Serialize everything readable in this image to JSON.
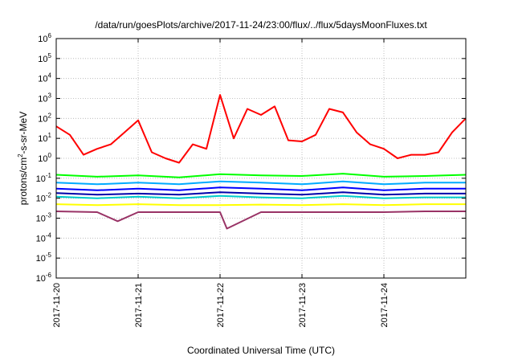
{
  "chart_data": {
    "type": "line",
    "title": "/data/run/goesPlots/archive/2017-11-24/23:00/flux/../flux/5daysMoonFluxes.txt",
    "xlabel": "Coordinated Universal Time (UTC)",
    "ylabel": "protons/cm²-s-sr-MeV",
    "ylabel_parts": {
      "pre": "protons/cm",
      "sup": "2",
      "post": "-s-sr-MeV"
    },
    "y_scale": "log",
    "ylim": [
      1e-06,
      1000000.0
    ],
    "y_ticks": [
      {
        "exp": -6,
        "base": "10",
        "power": "-6"
      },
      {
        "exp": -5,
        "base": "10",
        "power": "-5"
      },
      {
        "exp": -4,
        "base": "10",
        "power": "-4"
      },
      {
        "exp": -3,
        "base": "10",
        "power": "-3"
      },
      {
        "exp": -2,
        "base": "10",
        "power": "-2"
      },
      {
        "exp": -1,
        "base": "10",
        "power": "-1"
      },
      {
        "exp": 0,
        "base": "10",
        "power": "0"
      },
      {
        "exp": 1,
        "base": "10",
        "power": "1"
      },
      {
        "exp": 2,
        "base": "10",
        "power": "2"
      },
      {
        "exp": 3,
        "base": "10",
        "power": "3"
      },
      {
        "exp": 4,
        "base": "10",
        "power": "4"
      },
      {
        "exp": 5,
        "base": "10",
        "power": "5"
      },
      {
        "exp": 6,
        "base": "10",
        "power": "6"
      }
    ],
    "xlim": [
      "2017-11-20T00:00",
      "2017-11-25T00:00"
    ],
    "x_ticks": [
      "2017-11-20",
      "2017-11-21",
      "2017-11-22",
      "2017-11-23",
      "2017-11-24"
    ],
    "grid": true,
    "legend": "none",
    "series": [
      {
        "color": "#ff0000",
        "x": [
          "2017-11-20T00:00",
          "2017-11-20T04:00",
          "2017-11-20T08:00",
          "2017-11-20T12:00",
          "2017-11-20T16:00",
          "2017-11-20T20:00",
          "2017-11-21T00:00",
          "2017-11-21T04:00",
          "2017-11-21T08:00",
          "2017-11-21T12:00",
          "2017-11-21T16:00",
          "2017-11-21T20:00",
          "2017-11-22T00:00",
          "2017-11-22T04:00",
          "2017-11-22T08:00",
          "2017-11-22T12:00",
          "2017-11-22T16:00",
          "2017-11-22T20:00",
          "2017-11-23T00:00",
          "2017-11-23T04:00",
          "2017-11-23T08:00",
          "2017-11-23T12:00",
          "2017-11-23T16:00",
          "2017-11-23T20:00",
          "2017-11-24T00:00",
          "2017-11-24T04:00",
          "2017-11-24T08:00",
          "2017-11-24T12:00",
          "2017-11-24T16:00",
          "2017-11-24T20:00",
          "2017-11-25T00:00"
        ],
        "values": [
          40,
          15,
          1.5,
          3,
          5,
          20,
          80,
          2,
          1,
          0.6,
          5,
          3,
          1500,
          10,
          300,
          150,
          400,
          8,
          7,
          15,
          300,
          200,
          20,
          5,
          3,
          1,
          1.5,
          1.5,
          2,
          20,
          100
        ]
      },
      {
        "color": "#00ff00",
        "x": [
          "2017-11-20T00:00",
          "2017-11-20T12:00",
          "2017-11-21T00:00",
          "2017-11-21T12:00",
          "2017-11-22T00:00",
          "2017-11-22T12:00",
          "2017-11-23T00:00",
          "2017-11-23T12:00",
          "2017-11-24T00:00",
          "2017-11-24T12:00",
          "2017-11-25T00:00"
        ],
        "values": [
          0.15,
          0.12,
          0.14,
          0.11,
          0.16,
          0.14,
          0.13,
          0.17,
          0.12,
          0.13,
          0.15
        ]
      },
      {
        "color": "#00aaff",
        "x": [
          "2017-11-20T00:00",
          "2017-11-20T12:00",
          "2017-11-21T00:00",
          "2017-11-21T12:00",
          "2017-11-22T00:00",
          "2017-11-22T12:00",
          "2017-11-23T00:00",
          "2017-11-23T12:00",
          "2017-11-24T00:00",
          "2017-11-24T12:00",
          "2017-11-25T00:00"
        ],
        "values": [
          0.06,
          0.05,
          0.06,
          0.05,
          0.07,
          0.06,
          0.05,
          0.07,
          0.05,
          0.06,
          0.06
        ]
      },
      {
        "color": "#0000ff",
        "x": [
          "2017-11-20T00:00",
          "2017-11-20T12:00",
          "2017-11-21T00:00",
          "2017-11-21T12:00",
          "2017-11-22T00:00",
          "2017-11-22T12:00",
          "2017-11-23T00:00",
          "2017-11-23T12:00",
          "2017-11-24T00:00",
          "2017-11-24T12:00",
          "2017-11-25T00:00"
        ],
        "values": [
          0.03,
          0.025,
          0.03,
          0.025,
          0.035,
          0.03,
          0.025,
          0.035,
          0.025,
          0.03,
          0.03
        ]
      },
      {
        "color": "#0000aa",
        "x": [
          "2017-11-20T00:00",
          "2017-11-20T12:00",
          "2017-11-21T00:00",
          "2017-11-21T12:00",
          "2017-11-22T00:00",
          "2017-11-22T12:00",
          "2017-11-23T00:00",
          "2017-11-23T12:00",
          "2017-11-24T00:00",
          "2017-11-24T12:00",
          "2017-11-25T00:00"
        ],
        "values": [
          0.018,
          0.015,
          0.017,
          0.015,
          0.02,
          0.017,
          0.015,
          0.02,
          0.015,
          0.017,
          0.017
        ]
      },
      {
        "color": "#00cccc",
        "x": [
          "2017-11-20T00:00",
          "2017-11-20T12:00",
          "2017-11-21T00:00",
          "2017-11-21T12:00",
          "2017-11-22T00:00",
          "2017-11-22T12:00",
          "2017-11-23T00:00",
          "2017-11-23T12:00",
          "2017-11-24T00:00",
          "2017-11-24T12:00",
          "2017-11-25T00:00"
        ],
        "values": [
          0.012,
          0.01,
          0.012,
          0.01,
          0.013,
          0.011,
          0.01,
          0.013,
          0.01,
          0.011,
          0.011
        ]
      },
      {
        "color": "#ffff00",
        "x": [
          "2017-11-20T00:00",
          "2017-11-20T12:00",
          "2017-11-21T00:00",
          "2017-11-21T12:00",
          "2017-11-22T00:00",
          "2017-11-22T12:00",
          "2017-11-23T00:00",
          "2017-11-23T12:00",
          "2017-11-24T00:00",
          "2017-11-24T12:00",
          "2017-11-25T00:00"
        ],
        "values": [
          0.005,
          0.0045,
          0.005,
          0.0045,
          0.0045,
          0.0048,
          0.0045,
          0.005,
          0.0045,
          0.005,
          0.005
        ]
      },
      {
        "color": "#993366",
        "x": [
          "2017-11-20T00:00",
          "2017-11-20T12:00",
          "2017-11-20T18:00",
          "2017-11-21T00:00",
          "2017-11-21T12:00",
          "2017-11-22T00:00",
          "2017-11-22T02:00",
          "2017-11-22T12:00",
          "2017-11-23T00:00",
          "2017-11-23T12:00",
          "2017-11-24T00:00",
          "2017-11-24T12:00",
          "2017-11-25T00:00"
        ],
        "values": [
          0.0022,
          0.002,
          0.0007,
          0.002,
          0.002,
          0.002,
          0.0003,
          0.002,
          0.002,
          0.002,
          0.002,
          0.0022,
          0.0022
        ]
      }
    ]
  }
}
